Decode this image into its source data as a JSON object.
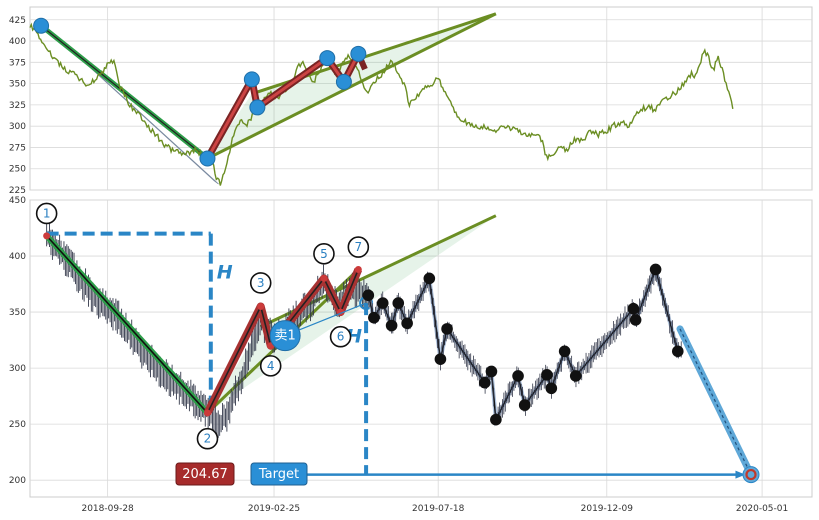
{
  "chart_data": [
    {
      "type": "line",
      "name": "top-panel",
      "ylim": [
        225,
        440
      ],
      "yticks": [
        225,
        250,
        275,
        300,
        325,
        350,
        375,
        400,
        425
      ],
      "xlim_days": [
        0,
        705
      ],
      "price_path": [
        [
          0,
          418
        ],
        [
          8,
          405
        ],
        [
          15,
          390
        ],
        [
          22,
          378
        ],
        [
          30,
          368
        ],
        [
          40,
          362
        ],
        [
          50,
          350
        ],
        [
          60,
          355
        ],
        [
          70,
          372
        ],
        [
          75,
          378
        ],
        [
          80,
          350
        ],
        [
          90,
          325
        ],
        [
          100,
          310
        ],
        [
          110,
          295
        ],
        [
          120,
          280
        ],
        [
          130,
          270
        ],
        [
          140,
          268
        ],
        [
          150,
          272
        ],
        [
          158,
          262
        ],
        [
          165,
          258
        ],
        [
          168,
          240
        ],
        [
          172,
          232
        ],
        [
          178,
          258
        ],
        [
          183,
          290
        ],
        [
          190,
          305
        ],
        [
          195,
          300
        ],
        [
          200,
          312
        ],
        [
          205,
          322
        ],
        [
          210,
          328
        ],
        [
          215,
          340
        ],
        [
          222,
          332
        ],
        [
          230,
          342
        ],
        [
          238,
          355
        ],
        [
          242,
          370
        ],
        [
          246,
          378
        ],
        [
          252,
          360
        ],
        [
          256,
          352
        ],
        [
          262,
          368
        ],
        [
          268,
          385
        ],
        [
          272,
          372
        ],
        [
          276,
          360
        ],
        [
          282,
          376
        ],
        [
          288,
          382
        ],
        [
          294,
          372
        ],
        [
          300,
          350
        ],
        [
          305,
          338
        ],
        [
          310,
          352
        ],
        [
          318,
          362
        ],
        [
          326,
          378
        ],
        [
          332,
          362
        ],
        [
          338,
          348
        ],
        [
          342,
          325
        ],
        [
          350,
          338
        ],
        [
          358,
          346
        ],
        [
          368,
          355
        ],
        [
          375,
          338
        ],
        [
          382,
          318
        ],
        [
          392,
          305
        ],
        [
          400,
          300
        ],
        [
          410,
          298
        ],
        [
          420,
          296
        ],
        [
          430,
          298
        ],
        [
          440,
          294
        ],
        [
          450,
          290
        ],
        [
          458,
          290
        ],
        [
          462,
          282
        ],
        [
          466,
          262
        ],
        [
          470,
          265
        ],
        [
          476,
          275
        ],
        [
          484,
          272
        ],
        [
          490,
          284
        ],
        [
          498,
          282
        ],
        [
          506,
          295
        ],
        [
          512,
          290
        ],
        [
          520,
          295
        ],
        [
          528,
          302
        ],
        [
          534,
          305
        ],
        [
          540,
          298
        ],
        [
          548,
          318
        ],
        [
          556,
          322
        ],
        [
          564,
          320
        ],
        [
          570,
          330
        ],
        [
          576,
          335
        ],
        [
          582,
          340
        ],
        [
          586,
          345
        ],
        [
          590,
          352
        ],
        [
          596,
          362
        ],
        [
          600,
          358
        ],
        [
          605,
          378
        ],
        [
          608,
          388
        ],
        [
          612,
          380
        ],
        [
          616,
          365
        ],
        [
          620,
          382
        ],
        [
          626,
          358
        ],
        [
          630,
          338
        ],
        [
          632,
          328
        ],
        [
          634,
          318
        ]
      ],
      "pattern_points": [
        [
          10,
          418
        ],
        [
          160,
          262
        ],
        [
          200,
          355
        ],
        [
          205,
          322
        ],
        [
          268,
          380
        ],
        [
          283,
          352
        ],
        [
          296,
          385
        ]
      ],
      "pattern_colors": {
        "fill": "#2e9e4a",
        "outline": "#6b8e23",
        "leg": "#7a2424"
      }
    },
    {
      "type": "line",
      "name": "bottom-panel",
      "ylim": [
        185,
        450
      ],
      "yticks": [
        200,
        250,
        300,
        350,
        400,
        450
      ],
      "xlim_days": [
        0,
        705
      ],
      "xtick_days": [
        70,
        220,
        368,
        520,
        660
      ],
      "xtick_labels": [
        "2018-09-28",
        "2019-02-25",
        "2019-07-18",
        "2019-12-09",
        "2020-05-01"
      ],
      "pattern_points": [
        [
          15,
          418
        ],
        [
          160,
          260
        ],
        [
          208,
          355
        ],
        [
          217,
          320
        ],
        [
          265,
          380
        ],
        [
          280,
          350
        ],
        [
          296,
          388
        ]
      ],
      "circle_labels": [
        "1",
        "2",
        "3",
        "4",
        "5",
        "6",
        "7"
      ],
      "forecast_points": [
        [
          305,
          365
        ],
        [
          310,
          345
        ],
        [
          318,
          358
        ],
        [
          326,
          338
        ],
        [
          332,
          358
        ],
        [
          340,
          340
        ],
        [
          360,
          380
        ],
        [
          370,
          308
        ],
        [
          376,
          335
        ],
        [
          410,
          287
        ],
        [
          416,
          297
        ],
        [
          420,
          254
        ],
        [
          440,
          293
        ],
        [
          446,
          267
        ],
        [
          466,
          294
        ],
        [
          470,
          282
        ],
        [
          482,
          315
        ],
        [
          492,
          293
        ],
        [
          544,
          353
        ],
        [
          546,
          343
        ],
        [
          564,
          388
        ],
        [
          584,
          315
        ]
      ],
      "target_line": {
        "from": [
          586,
          335
        ],
        "to": [
          650,
          205
        ]
      },
      "sell_marker": {
        "label": "卖1",
        "day": 230,
        "price": 329
      },
      "target_level": 204.67,
      "h_label": "H",
      "badge_value": "204.67",
      "badge_target": "Target",
      "colors": {
        "price": "#33384a",
        "outline": "#6b8e23",
        "leg": "#a83232",
        "accent": "#2a86c6",
        "target_fill": "#a62b2b"
      }
    }
  ]
}
